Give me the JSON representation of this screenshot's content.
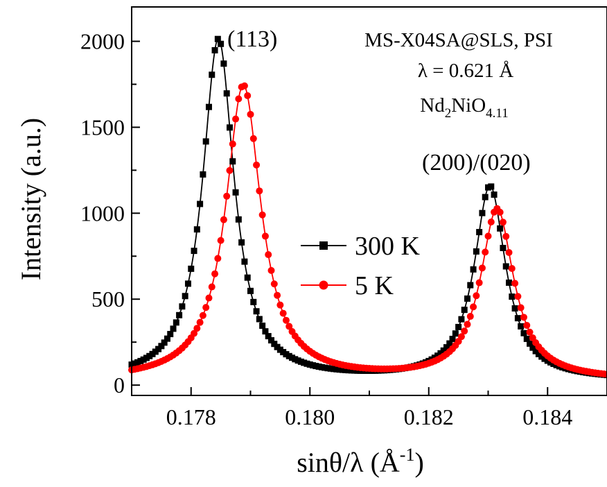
{
  "chart_data": {
    "type": "scatter",
    "title": "",
    "xlabel": "sinθ/λ (Å⁻¹)",
    "xlabel_main": "sinθ/λ (Å",
    "xlabel_sup": "-1",
    "xlabel_close": ")",
    "ylabel": "Intensity (a.u.)",
    "xlim": [
      0.177,
      0.185
    ],
    "ylim": [
      -60,
      2200
    ],
    "x_ticks": [
      0.178,
      0.18,
      0.182,
      0.184
    ],
    "x_tick_labels": [
      "0.178",
      "0.180",
      "0.182",
      "0.184"
    ],
    "y_ticks": [
      0,
      500,
      1000,
      1500,
      2000
    ],
    "y_tick_labels": [
      "0",
      "500",
      "1000",
      "1500",
      "2000"
    ],
    "grid": false,
    "legend_position": "center",
    "annotations": {
      "instrument": "MS-X04SA@SLS, PSI",
      "wavelength": "λ = 0.621 Å",
      "formula_nd": "Nd",
      "formula_sub1": "2",
      "formula_ni": "NiO",
      "formula_sub2": "4.11"
    },
    "peak_labels": [
      {
        "text": "(113)",
        "x": 0.1785,
        "y": 2000
      },
      {
        "text": "(200)/(020)",
        "x": 0.183,
        "y": 1150
      }
    ],
    "x_step": 5e-05,
    "series": [
      {
        "name": "300 K",
        "color": "#000000",
        "marker": "square",
        "baseline": 25,
        "peaks": [
          {
            "center": 0.17846,
            "height": 1985,
            "width": 0.00032
          },
          {
            "center": 0.18303,
            "height": 1125,
            "width": 0.00032
          }
        ]
      },
      {
        "name": "5 K",
        "color": "#ff0000",
        "marker": "circle",
        "baseline": 25,
        "peaks": [
          {
            "center": 0.17888,
            "height": 1715,
            "width": 0.00036
          },
          {
            "center": 0.18315,
            "height": 990,
            "width": 0.00034
          }
        ]
      }
    ]
  }
}
